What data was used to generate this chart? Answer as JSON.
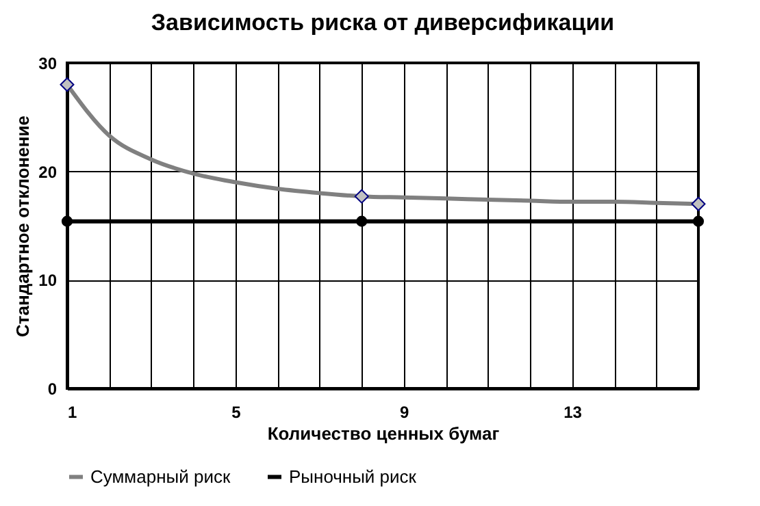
{
  "chart_data": {
    "type": "line",
    "title": "Зависимость риска от диверсификации",
    "xlabel": "Количество ценных бумаг",
    "ylabel": "Стандартное отклонение",
    "series": [
      {
        "name": "Суммарный риск",
        "color": "#808080",
        "marker": "none",
        "x": [
          1,
          2,
          3,
          4,
          5,
          6,
          7,
          8,
          9,
          10,
          11,
          12,
          13,
          14,
          15,
          16
        ],
        "values": [
          28,
          23.3,
          21.1,
          19.8,
          19,
          18.4,
          18,
          17.7,
          17.6,
          17.5,
          17.4,
          17.3,
          17.2,
          17.2,
          17.1,
          17
        ]
      },
      {
        "type": "scatter",
        "color": "#c0c0c0",
        "marker": "diamond",
        "x": [
          1,
          8,
          16
        ],
        "values": [
          28,
          17.7,
          17
        ]
      },
      {
        "name": "Рыночный риск",
        "color": "#000000",
        "marker": "circle",
        "x": [
          1,
          8,
          16
        ],
        "values": [
          15.4,
          15.4,
          15.4
        ]
      }
    ],
    "xlim": [
      1,
      16
    ],
    "xticks": [
      1,
      {
        "value": 2,
        "label": null
      },
      {
        "value": 3,
        "label": null
      },
      {
        "value": 4,
        "label": null
      },
      5,
      {
        "value": 6,
        "label": null
      },
      {
        "value": 7,
        "label": null
      },
      {
        "value": 8,
        "label": null
      },
      9,
      {
        "value": 10,
        "label": null
      },
      {
        "value": 11,
        "label": null
      },
      {
        "value": 12,
        "label": null
      },
      13,
      {
        "value": 14,
        "label": null
      },
      {
        "value": 15,
        "label": null
      },
      {
        "value": 16,
        "label": null
      }
    ],
    "ylim": [
      0,
      30
    ],
    "yticks": [
      0,
      10,
      20,
      30
    ],
    "grid": true,
    "legend": "bottom"
  }
}
